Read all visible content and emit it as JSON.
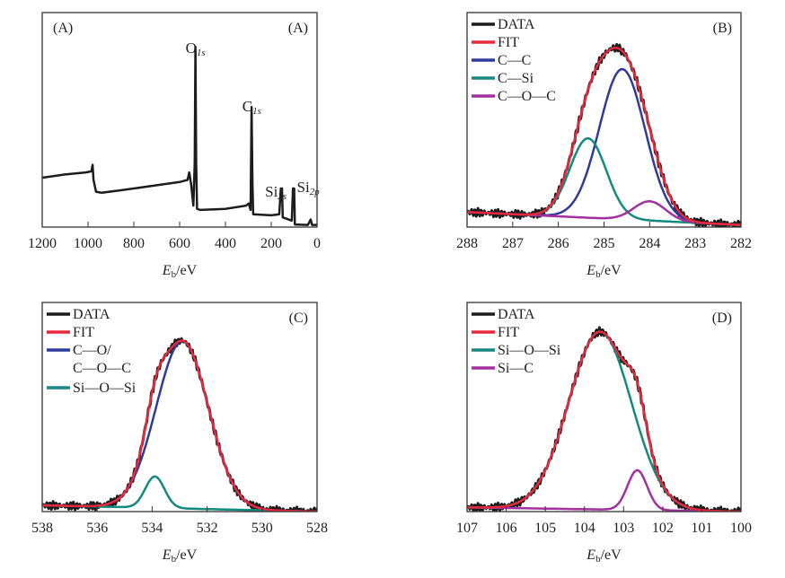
{
  "colors": {
    "data": "#1c1c1c",
    "fit": "#e8283c",
    "blue": "#2f3b9c",
    "teal": "#13897f",
    "magenta": "#a3309c",
    "frame": "#333333"
  },
  "chart_data": [
    {
      "panel": "(A)",
      "panel_label_extra": "(A)",
      "type": "line",
      "xlabel": {
        "main": "E",
        "sub": "b",
        "rest": "/eV"
      },
      "xlim": [
        1200,
        0
      ],
      "ylim": [
        0,
        1
      ],
      "xticks": [
        1200,
        1000,
        800,
        600,
        400,
        200,
        0
      ],
      "grid": false,
      "series": [
        {
          "key": "data",
          "color_key": "data",
          "points": [
            [
              1200,
              0.23
            ],
            [
              1100,
              0.245
            ],
            [
              1010,
              0.255
            ],
            [
              985,
              0.26
            ],
            [
              980,
              0.29
            ],
            [
              976,
              0.22
            ],
            [
              965,
              0.165
            ],
            [
              940,
              0.16
            ],
            [
              800,
              0.18
            ],
            [
              600,
              0.21
            ],
            [
              565,
              0.22
            ],
            [
              558,
              0.255
            ],
            [
              550,
              0.2
            ],
            [
              540,
              0.1
            ],
            [
              534,
              0.3
            ],
            [
              531,
              0.84
            ],
            [
              528,
              0.3
            ],
            [
              524,
              0.085
            ],
            [
              510,
              0.08
            ],
            [
              400,
              0.085
            ],
            [
              310,
              0.1
            ],
            [
              298,
              0.11
            ],
            [
              290,
              0.08
            ],
            [
              286,
              0.56
            ],
            [
              282,
              0.2
            ],
            [
              279,
              0.06
            ],
            [
              200,
              0.055
            ],
            [
              165,
              0.06
            ],
            [
              158,
              0.18
            ],
            [
              153,
              0.18
            ],
            [
              150,
              0.045
            ],
            [
              110,
              0.03
            ],
            [
              105,
              0.18
            ],
            [
              100,
              0.18
            ],
            [
              97,
              0.012
            ],
            [
              40,
              0.01
            ],
            [
              28,
              0.035
            ],
            [
              22,
              0.01
            ],
            [
              0,
              0.01
            ]
          ]
        }
      ],
      "annotations": [
        {
          "main": "O",
          "sub": "1s",
          "x": 531
        },
        {
          "main": "C",
          "sub": "1s",
          "x": 285
        },
        {
          "main": "Si",
          "sub": "2s",
          "x": 180
        },
        {
          "main": "Si",
          "sub": "2p",
          "x": 70
        }
      ]
    },
    {
      "panel": "(B)",
      "type": "line",
      "xlabel": {
        "main": "E",
        "sub": "b",
        "rest": "/eV"
      },
      "xlim": [
        288,
        282
      ],
      "ylim": [
        0,
        1
      ],
      "xticks": [
        288,
        287,
        286,
        285,
        284,
        283,
        282
      ],
      "grid": false,
      "legend_position": "top-left",
      "background": [
        0.07,
        0.01
      ],
      "legend": [
        {
          "label": "DATA",
          "color_key": "data"
        },
        {
          "label": "FIT",
          "color_key": "fit"
        },
        {
          "label": "C—C",
          "color_key": "blue"
        },
        {
          "label": "C—Si",
          "color_key": "teal"
        },
        {
          "label": "C—O—C",
          "color_key": "magenta"
        }
      ],
      "components": [
        {
          "label": "C—C",
          "color_key": "blue",
          "center": 284.6,
          "height": 0.7,
          "sigma": 0.5
        },
        {
          "label": "C—Si",
          "color_key": "teal",
          "center": 285.35,
          "height": 0.37,
          "sigma": 0.4
        },
        {
          "label": "C—O—C",
          "color_key": "magenta",
          "center": 284.0,
          "height": 0.09,
          "sigma": 0.35
        }
      ]
    },
    {
      "panel": "(C)",
      "type": "line",
      "xlabel": {
        "main": "E",
        "sub": "b",
        "rest": "/eV"
      },
      "xlim": [
        538,
        528
      ],
      "ylim": [
        0,
        1
      ],
      "xticks": [
        538,
        536,
        534,
        532,
        530,
        528
      ],
      "grid": false,
      "legend_position": "top-left",
      "background": [
        0.03,
        0.0
      ],
      "legend": [
        {
          "label": "DATA",
          "color_key": "data"
        },
        {
          "label": "FIT",
          "color_key": "fit"
        },
        {
          "label": "C—O/",
          "label2": "C—O—C",
          "color_key": "blue"
        },
        {
          "label": "Si—O—Si",
          "color_key": "teal"
        }
      ],
      "components": [
        {
          "label": "C—O/C—O—C",
          "color_key": "blue",
          "center": 532.9,
          "height": 0.8,
          "sigma": 0.95
        },
        {
          "label": "Si—O—Si",
          "color_key": "teal",
          "center": 533.9,
          "height": 0.15,
          "sigma": 0.35
        }
      ]
    },
    {
      "panel": "(D)",
      "type": "line",
      "xlabel": {
        "main": "E",
        "sub": "b",
        "rest": "/eV"
      },
      "xlim": [
        107,
        100
      ],
      "ylim": [
        0,
        1
      ],
      "xticks": [
        107,
        106,
        105,
        104,
        103,
        102,
        101,
        100
      ],
      "grid": false,
      "legend_position": "top-left",
      "background": [
        0.02,
        0.0
      ],
      "legend": [
        {
          "label": "DATA",
          "color_key": "data"
        },
        {
          "label": "FIT",
          "color_key": "fit"
        },
        {
          "label": "Si—O—Si",
          "color_key": "teal"
        },
        {
          "label": "Si—C",
          "color_key": "magenta"
        }
      ],
      "components": [
        {
          "label": "Si—O—Si",
          "color_key": "teal",
          "center": 103.6,
          "height": 0.85,
          "sigma": 0.8
        },
        {
          "label": "Si—C",
          "color_key": "magenta",
          "center": 102.65,
          "height": 0.19,
          "sigma": 0.25
        }
      ]
    }
  ]
}
